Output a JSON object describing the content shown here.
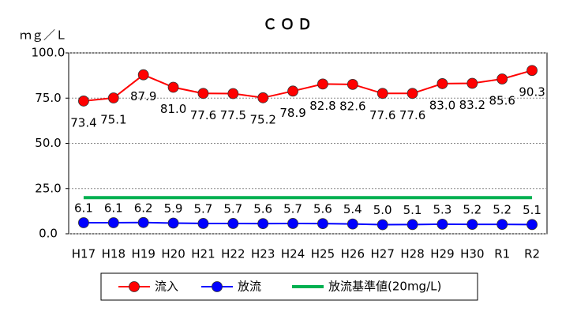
{
  "chart_data": {
    "type": "line",
    "title": "ＣＯＤ",
    "y_label": "ｍｇ／Ｌ",
    "categories": [
      "H17",
      "H18",
      "H19",
      "H20",
      "H21",
      "H22",
      "H23",
      "H24",
      "H25",
      "H26",
      "H27",
      "H28",
      "H29",
      "H30",
      "R1",
      "R2"
    ],
    "series": [
      {
        "name": "流入",
        "color": "#ff0000",
        "marker": "circle",
        "label_position": "below",
        "values": [
          73.4,
          75.1,
          87.9,
          81.0,
          77.6,
          77.5,
          75.2,
          78.9,
          82.8,
          82.6,
          77.6,
          77.6,
          83.0,
          83.2,
          85.6,
          90.3
        ],
        "value_labels": [
          "73.4",
          "75.1",
          "87.9",
          "81.0",
          "77.6",
          "77.5",
          "75.2",
          "78.9",
          "82.8",
          "82.6",
          "77.6",
          "77.6",
          "83.0",
          "83.2",
          "85.6",
          "90.3"
        ]
      },
      {
        "name": "放流",
        "color": "#0000ff",
        "marker": "circle",
        "label_position": "above",
        "values": [
          6.1,
          6.1,
          6.2,
          5.9,
          5.7,
          5.7,
          5.6,
          5.7,
          5.6,
          5.4,
          5.0,
          5.1,
          5.3,
          5.2,
          5.2,
          5.1
        ],
        "value_labels": [
          "6.1",
          "6.1",
          "6.2",
          "5.9",
          "5.7",
          "5.7",
          "5.6",
          "5.7",
          "5.6",
          "5.4",
          "5.0",
          "5.1",
          "5.3",
          "5.2",
          "5.2",
          "5.1"
        ]
      },
      {
        "name": "放流基準値(20mg/L)",
        "color": "#00b050",
        "marker": "none",
        "values": [
          20,
          20,
          20,
          20,
          20,
          20,
          20,
          20,
          20,
          20,
          20,
          20,
          20,
          20,
          20,
          20
        ]
      }
    ],
    "ylim": [
      0,
      100
    ],
    "yticks": [
      {
        "value": 0,
        "label": "0.0"
      },
      {
        "value": 25,
        "label": "25.0"
      },
      {
        "value": 50,
        "label": "50.0"
      },
      {
        "value": 75,
        "label": "75.0"
      },
      {
        "value": 100,
        "label": "100.0"
      }
    ],
    "grid": true,
    "legend": "bottom"
  }
}
